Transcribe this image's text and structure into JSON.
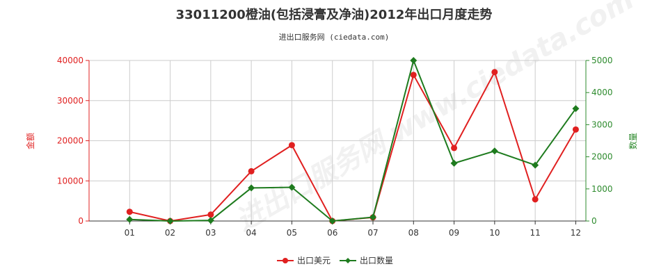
{
  "chart_data": {
    "type": "line",
    "title": "33011200橙油(包括浸膏及净油)2012年出口月度走势",
    "subtitle": "进出口服务网 (ciedata.com)",
    "watermark": "进出口服务网 www.ciedata.com",
    "categories": [
      "01",
      "02",
      "03",
      "04",
      "05",
      "06",
      "07",
      "08",
      "09",
      "10",
      "11",
      "12"
    ],
    "y_left": {
      "label": "金额",
      "lim": [
        0,
        40000
      ],
      "ticks": [
        0,
        10000,
        20000,
        30000,
        40000
      ],
      "color": "#e02020"
    },
    "y_right": {
      "label": "数量",
      "lim": [
        0,
        5000
      ],
      "ticks": [
        0,
        1000,
        2000,
        3000,
        4000,
        5000
      ],
      "color": "#2e8b2e"
    },
    "series": [
      {
        "name": "出口美元",
        "axis": "left",
        "color": "#e02020",
        "values": [
          2300,
          0,
          1600,
          12400,
          18900,
          0,
          900,
          36400,
          18200,
          37100,
          5400,
          22800
        ]
      },
      {
        "name": "出口数量",
        "axis": "right",
        "color": "#1e7b1e",
        "values": [
          50,
          0,
          20,
          1030,
          1050,
          0,
          120,
          5000,
          1800,
          2180,
          1740,
          3500
        ]
      }
    ],
    "grid": true,
    "legend_position": "bottom"
  }
}
